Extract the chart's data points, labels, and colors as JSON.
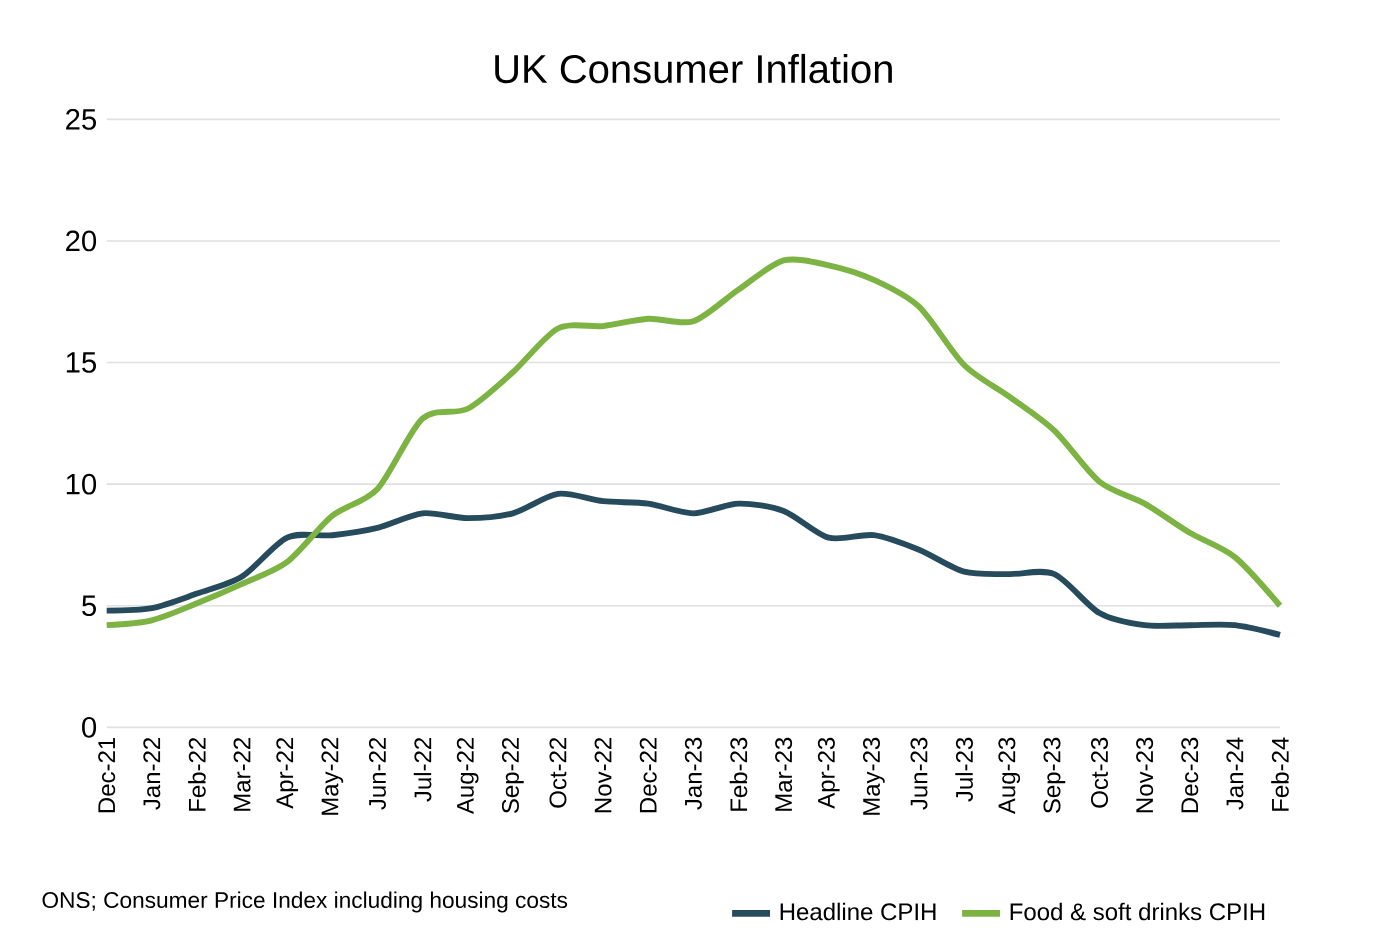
{
  "chart_data": {
    "type": "line",
    "title": "UK Consumer Inflation",
    "categories": [
      "Dec-21",
      "Jan-22",
      "Feb-22",
      "Mar-22",
      "Apr-22",
      "May-22",
      "Jun-22",
      "Jul-22",
      "Aug-22",
      "Sep-22",
      "Oct-22",
      "Nov-22",
      "Dec-22",
      "Jan-23",
      "Feb-23",
      "Mar-23",
      "Apr-23",
      "May-23",
      "Jun-23",
      "Jul-23",
      "Aug-23",
      "Sep-23",
      "Oct-23",
      "Nov-23",
      "Dec-23",
      "Jan-24",
      "Feb-24"
    ],
    "series": [
      {
        "name": "Headline CPIH",
        "color": "#264b5d",
        "values": [
          4.8,
          4.9,
          5.5,
          6.2,
          7.8,
          7.9,
          8.2,
          8.8,
          8.6,
          8.8,
          9.6,
          9.3,
          9.2,
          8.8,
          9.2,
          8.9,
          7.8,
          7.9,
          7.3,
          6.4,
          6.3,
          6.3,
          4.7,
          4.2,
          4.2,
          4.2,
          3.8
        ]
      },
      {
        "name": "Food & soft drinks CPIH",
        "color": "#7cb342",
        "values": [
          4.2,
          4.4,
          5.1,
          5.9,
          6.8,
          8.7,
          9.8,
          12.7,
          13.1,
          14.6,
          16.4,
          16.5,
          16.8,
          16.7,
          18.0,
          19.2,
          19.0,
          18.4,
          17.3,
          14.9,
          13.6,
          12.2,
          10.1,
          9.2,
          8.0,
          7.0,
          5.0
        ]
      }
    ],
    "ylim": [
      0,
      25
    ],
    "yticks": [
      0,
      5,
      10,
      15,
      20,
      25
    ],
    "grid": "y",
    "legend": "bottom right",
    "marker": "none",
    "line_style": "solid",
    "annotations": [
      "ONS; Consumer Price Index including housing costs"
    ]
  }
}
